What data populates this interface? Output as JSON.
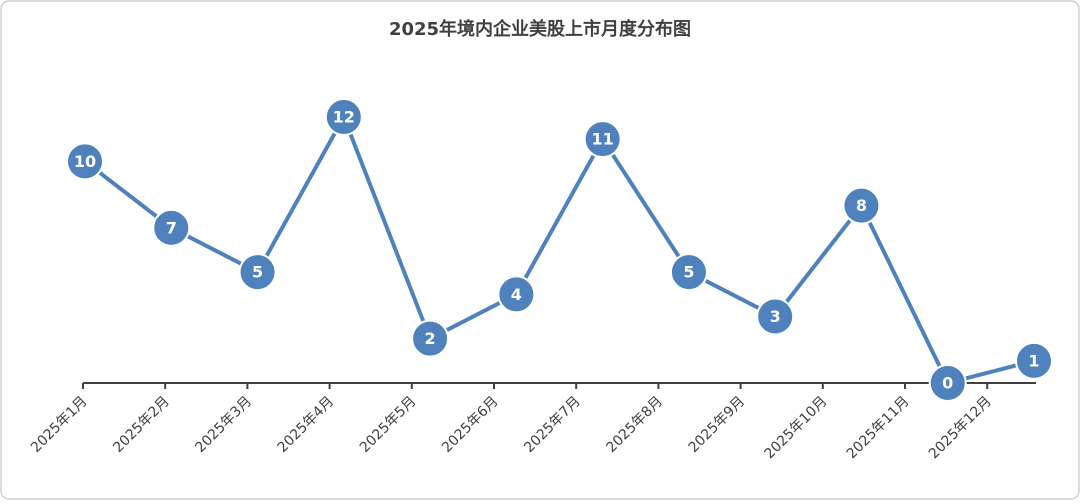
{
  "chart_data": {
    "type": "line",
    "title": "2025年境内企业美股上市月度分布图",
    "categories": [
      "2025年1月",
      "2025年2月",
      "2025年3月",
      "2025年4月",
      "2025年5月",
      "2025年6月",
      "2025年7月",
      "2025年8月",
      "2025年9月",
      "2025年10月",
      "2025年11月",
      "2025年12月"
    ],
    "values": [
      10,
      7,
      5,
      12,
      2,
      4,
      11,
      5,
      3,
      8,
      0,
      1
    ],
    "color": "#4f81bd",
    "ylim": [
      0,
      12
    ]
  }
}
